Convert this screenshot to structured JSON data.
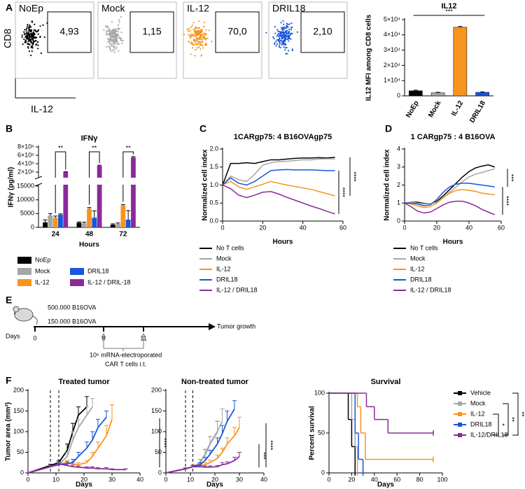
{
  "panel_labels": [
    "A",
    "B",
    "C",
    "D",
    "E",
    "F"
  ],
  "flow": {
    "y_label": "CD8",
    "x_label": "IL-12",
    "plots": [
      {
        "name": "NoEp",
        "gate": "4,93",
        "color": "#000000"
      },
      {
        "name": "Mock",
        "gate": "1,15",
        "color": "#a6a6a6"
      },
      {
        "name": "IL-12",
        "gate": "70,0",
        "color": "#f7941d"
      },
      {
        "name": "DRIL18",
        "gate": "2,10",
        "color": "#1a56db"
      }
    ]
  },
  "timeline": {
    "injections": [
      "500.000 B16OVA",
      "150.000 B16OVA"
    ],
    "axis_label": "Days",
    "days": [
      0,
      8,
      11
    ],
    "end_label": "Tumor growth",
    "treatment": [
      "10⁶ mRNA-electroporated",
      "CAR T cells i.t."
    ]
  },
  "chart_data": [
    {
      "type": "bar",
      "title": "IL12",
      "y_label": "IL12 MFI among CD8 cells",
      "categories": [
        "NoEp",
        "Mock",
        "IL-12",
        "DRIL18"
      ],
      "values": [
        3300,
        2000,
        45000,
        2300
      ],
      "errors": [
        400,
        300,
        500,
        300
      ],
      "colors": [
        "#000000",
        "#a6a6a6",
        "#f7941d",
        "#1a56db"
      ],
      "ylim": [
        0,
        50000
      ],
      "yticks": [
        0,
        {
          "value": 10000,
          "label": "1×10⁴"
        },
        {
          "value": 20000,
          "label": "2×10⁴"
        },
        {
          "value": 30000,
          "label": "3×10⁴"
        },
        {
          "value": 40000,
          "label": "4×10⁴"
        },
        {
          "value": 50000,
          "label": "5×10⁴"
        }
      ],
      "annotations": [
        "***"
      ]
    },
    {
      "type": "broken_grouped_bar",
      "title": "IFNγ",
      "x_label": "Hours",
      "y_label": "IFNγ (pg/ml)",
      "categories": [
        24,
        48,
        72
      ],
      "series": [
        {
          "name": "NoEp",
          "color": "#000000",
          "values": [
            1800,
            1700,
            1000
          ],
          "errors": [
            900,
            300,
            300
          ]
        },
        {
          "name": "Mock",
          "color": "#a6a6a6",
          "values": [
            4300,
            1500,
            1300
          ],
          "errors": [
            700,
            400,
            300
          ]
        },
        {
          "name": "IL-12",
          "color": "#f7941d",
          "values": [
            3500,
            6800,
            8000
          ],
          "errors": [
            600,
            400,
            300
          ]
        },
        {
          "name": "DRIL18",
          "color": "#1a56db",
          "values": [
            4600,
            3500,
            2800
          ],
          "errors": [
            300,
            2500,
            3300
          ]
        },
        {
          "name": "IL-12 / DRIL-18",
          "color": "#8b2a9b",
          "values": [
            2000000,
            3500000,
            5500000
          ],
          "errors": [
            100000,
            150000,
            200000
          ]
        }
      ],
      "ylim": [
        0,
        15000
      ],
      "yticks": [
        0,
        5000,
        10000,
        15000
      ],
      "ylim_upper": [
        1000000,
        8000000
      ],
      "yticks_upper": [
        {
          "value": 2000000,
          "label": "2×10⁶"
        },
        {
          "value": 4000000,
          "label": "4×10⁶"
        },
        {
          "value": 6000000,
          "label": "6×10⁶"
        },
        {
          "value": 8000000,
          "label": "8×10⁶"
        }
      ],
      "annotations": [
        "**",
        "**",
        "**"
      ],
      "legend_position": "bottom"
    },
    {
      "type": "line",
      "title": "1CARgp75: 4 B16OVAgp75",
      "x_label": "Hours",
      "y_label": "Normalized cell index",
      "x": [
        0,
        4,
        8,
        12,
        16,
        20,
        24,
        28,
        32,
        36,
        40,
        44,
        48,
        52,
        56
      ],
      "series": [
        {
          "name": "No T cells",
          "color": "#000000",
          "values": [
            1.0,
            1.6,
            1.6,
            1.62,
            1.6,
            1.65,
            1.7,
            1.7,
            1.72,
            1.74,
            1.75,
            1.75,
            1.76,
            1.75,
            1.77
          ]
        },
        {
          "name": "Mock",
          "color": "#a6a6a6",
          "values": [
            1.0,
            1.25,
            1.15,
            1.1,
            1.3,
            1.55,
            1.62,
            1.65,
            1.66,
            1.68,
            1.7,
            1.7,
            1.72,
            1.73,
            1.72
          ]
        },
        {
          "name": "IL-12",
          "color": "#f7941d",
          "values": [
            1.0,
            1.1,
            0.95,
            0.88,
            0.95,
            1.02,
            1.1,
            1.05,
            1.0,
            0.96,
            0.92,
            0.88,
            0.82,
            0.76,
            0.7
          ]
        },
        {
          "name": "DRIL18",
          "color": "#1a56db",
          "values": [
            1.0,
            1.2,
            1.05,
            1.0,
            1.1,
            1.25,
            1.4,
            1.42,
            1.43,
            1.42,
            1.42,
            1.42,
            1.41,
            1.4,
            1.4
          ]
        },
        {
          "name": "IL-12 / DRIL18",
          "color": "#8b2a9b",
          "values": [
            1.0,
            0.9,
            0.72,
            0.65,
            0.72,
            0.8,
            0.82,
            0.75,
            0.66,
            0.58,
            0.5,
            0.42,
            0.35,
            0.27,
            0.2
          ]
        }
      ],
      "xlim": [
        0,
        60
      ],
      "xticks": [
        0,
        20,
        40,
        60
      ],
      "ylim": [
        0,
        2
      ],
      "yticks": [
        {
          "value": 0,
          "label": "0.0"
        },
        0.5,
        {
          "value": 1,
          "label": "1.0"
        },
        1.5,
        {
          "value": 2,
          "label": "2.0"
        }
      ],
      "annotations": [
        "****",
        "****"
      ],
      "legend_position": "bottom"
    },
    {
      "type": "line",
      "title": "1 CARgp75 : 4 B16OVA",
      "x_label": "Hours",
      "y_label": "Normalized cell index",
      "x": [
        0,
        4,
        8,
        12,
        16,
        20,
        24,
        28,
        32,
        36,
        40,
        44,
        48,
        52,
        56
      ],
      "series": [
        {
          "name": "No T cells",
          "color": "#000000",
          "values": [
            1.0,
            1.05,
            1.05,
            0.98,
            0.95,
            1.1,
            1.4,
            1.75,
            2.1,
            2.45,
            2.75,
            2.95,
            3.05,
            3.12,
            3.0
          ]
        },
        {
          "name": "Mock",
          "color": "#a6a6a6",
          "values": [
            1.0,
            1.05,
            1.0,
            0.95,
            0.95,
            1.05,
            1.3,
            1.6,
            1.9,
            2.2,
            2.45,
            2.6,
            2.7,
            2.8,
            2.9
          ]
        },
        {
          "name": "IL-12",
          "color": "#f7941d",
          "values": [
            1.0,
            0.95,
            0.85,
            0.75,
            0.8,
            1.0,
            1.3,
            1.55,
            1.7,
            1.75,
            1.7,
            1.65,
            1.55,
            1.5,
            1.45
          ]
        },
        {
          "name": "DRIL18",
          "color": "#1a56db",
          "values": [
            1.0,
            1.0,
            0.95,
            0.85,
            0.9,
            1.2,
            1.6,
            1.9,
            2.05,
            2.1,
            2.1,
            2.05,
            2.0,
            1.95,
            1.9
          ]
        },
        {
          "name": "IL-12 / DRIL18",
          "color": "#8b2a9b",
          "values": [
            1.0,
            0.8,
            0.55,
            0.45,
            0.5,
            0.7,
            0.9,
            1.05,
            1.1,
            1.1,
            1.0,
            0.85,
            0.65,
            0.5,
            0.35
          ]
        }
      ],
      "xlim": [
        0,
        60
      ],
      "xticks": [
        0,
        20,
        40,
        60
      ],
      "ylim": [
        0,
        4
      ],
      "yticks": [
        0,
        1,
        2,
        3,
        4
      ],
      "annotations": [
        "***",
        "****"
      ],
      "legend_position": "bottom"
    },
    {
      "type": "line_errorbar",
      "title": "Treated tumor",
      "x_label": "Days",
      "y_label": "Tumor area (mm²)",
      "series": [
        {
          "color": "#000000",
          "x": [
            0,
            8,
            11,
            14,
            16,
            18,
            21
          ],
          "values": [
            0,
            18,
            25,
            55,
            100,
            140,
            160
          ],
          "errors": [
            0,
            3,
            5,
            15,
            20,
            20,
            25
          ]
        },
        {
          "color": "#a6a6a6",
          "x": [
            0,
            8,
            11,
            14,
            16,
            18,
            21,
            23
          ],
          "values": [
            0,
            15,
            20,
            40,
            80,
            110,
            140,
            160
          ],
          "errors": [
            0,
            3,
            5,
            10,
            20,
            20,
            20,
            20
          ]
        },
        {
          "color": "#f7941d",
          "x": [
            0,
            8,
            11,
            14,
            16,
            18,
            21,
            23,
            25,
            28,
            30
          ],
          "values": [
            0,
            15,
            22,
            25,
            22,
            20,
            25,
            40,
            60,
            90,
            130
          ],
          "errors": [
            0,
            3,
            5,
            5,
            5,
            5,
            5,
            10,
            15,
            25,
            35
          ]
        },
        {
          "color": "#1a56db",
          "x": [
            0,
            8,
            11,
            14,
            16,
            18,
            21,
            23,
            25,
            28
          ],
          "values": [
            0,
            15,
            20,
            22,
            25,
            40,
            60,
            80,
            110,
            135
          ],
          "errors": [
            0,
            3,
            4,
            5,
            8,
            10,
            15,
            20,
            20,
            15
          ]
        },
        {
          "color": "#8b2a9b",
          "x": [
            0,
            8,
            11,
            14,
            16,
            18,
            21,
            23,
            25,
            28,
            30,
            35
          ],
          "values": [
            0,
            15,
            22,
            18,
            15,
            14,
            12,
            12,
            10,
            10,
            8,
            8
          ],
          "errors": [
            0,
            3,
            5,
            4,
            4,
            3,
            3,
            3,
            3,
            3,
            2,
            2
          ]
        }
      ],
      "treatment_days": [
        8,
        11
      ],
      "xlim": [
        0,
        40
      ],
      "xticks": [
        0,
        10,
        20,
        30,
        40
      ],
      "ylim": [
        0,
        200
      ],
      "yticks": [
        0,
        50,
        100,
        150,
        200
      ],
      "annotations": [
        "****"
      ]
    },
    {
      "type": "line_errorbar",
      "title": "Non-treated tumor",
      "x_label": "Days",
      "series": [
        {
          "color": "#000000",
          "x": [
            0,
            8,
            11,
            14,
            16,
            18,
            21
          ],
          "values": [
            0,
            10,
            15,
            25,
            45,
            70,
            100
          ],
          "errors": [
            0,
            2,
            4,
            8,
            12,
            18,
            25
          ]
        },
        {
          "color": "#a6a6a6",
          "x": [
            0,
            8,
            11,
            14,
            16,
            18,
            21,
            23
          ],
          "values": [
            0,
            10,
            15,
            25,
            45,
            70,
            100,
            125
          ],
          "errors": [
            0,
            2,
            4,
            8,
            12,
            18,
            25,
            30
          ]
        },
        {
          "color": "#f7941d",
          "x": [
            0,
            8,
            11,
            14,
            16,
            18,
            21,
            23,
            25,
            28,
            30
          ],
          "values": [
            0,
            10,
            15,
            18,
            20,
            25,
            35,
            50,
            70,
            90,
            110
          ],
          "errors": [
            0,
            2,
            3,
            4,
            5,
            6,
            8,
            10,
            15,
            20,
            25
          ]
        },
        {
          "color": "#1a56db",
          "x": [
            0,
            8,
            11,
            14,
            16,
            18,
            21,
            23,
            25,
            28
          ],
          "values": [
            0,
            10,
            15,
            20,
            30,
            45,
            70,
            95,
            125,
            155
          ],
          "errors": [
            0,
            2,
            3,
            5,
            8,
            10,
            15,
            20,
            25,
            20
          ]
        },
        {
          "color": "#8b2a9b",
          "x": [
            0,
            8,
            11,
            14,
            16,
            18,
            21,
            23,
            25,
            28,
            30
          ],
          "values": [
            0,
            10,
            15,
            15,
            14,
            14,
            15,
            20,
            22,
            30,
            40
          ],
          "errors": [
            0,
            2,
            3,
            3,
            3,
            3,
            3,
            5,
            5,
            8,
            10
          ]
        }
      ],
      "treatment_days": [
        8,
        11
      ],
      "xlim": [
        0,
        40
      ],
      "xticks": [
        0,
        10,
        20,
        30,
        40
      ],
      "ylim": [
        0,
        200
      ],
      "yticks": [
        0,
        50,
        100,
        150,
        200
      ],
      "annotations": [
        "***",
        "****"
      ]
    },
    {
      "type": "survival",
      "title": "Survival",
      "x_label": "Days",
      "y_label": "Percent survival",
      "series": [
        {
          "name": "Vehicle",
          "color": "#000000",
          "x": [
            0,
            17,
            20,
            23
          ],
          "values": [
            100,
            67,
            33,
            0
          ]
        },
        {
          "name": "Mock",
          "color": "#a6a6a6",
          "x": [
            0,
            20,
            23,
            25
          ],
          "values": [
            100,
            67,
            33,
            0
          ]
        },
        {
          "name": "IL-12",
          "color": "#f7941d",
          "x": [
            0,
            25,
            28,
            32,
            92
          ],
          "values": [
            100,
            83,
            50,
            17,
            17
          ]
        },
        {
          "name": "DRIL18",
          "color": "#1a56db",
          "x": [
            0,
            23,
            26,
            30
          ],
          "values": [
            100,
            50,
            17,
            0
          ]
        },
        {
          "name": "IL-12/DRIL18",
          "color": "#8b2a9b",
          "x": [
            0,
            33,
            40,
            52,
            92
          ],
          "values": [
            100,
            83,
            67,
            50,
            50
          ]
        }
      ],
      "xlim": [
        0,
        100
      ],
      "xticks": [
        0,
        20,
        40,
        60,
        80,
        100
      ],
      "ylim": [
        0,
        100
      ],
      "yticks": [
        0,
        50,
        100
      ],
      "annotations": [
        "*",
        "**",
        "**"
      ],
      "legend_position": "right"
    }
  ]
}
